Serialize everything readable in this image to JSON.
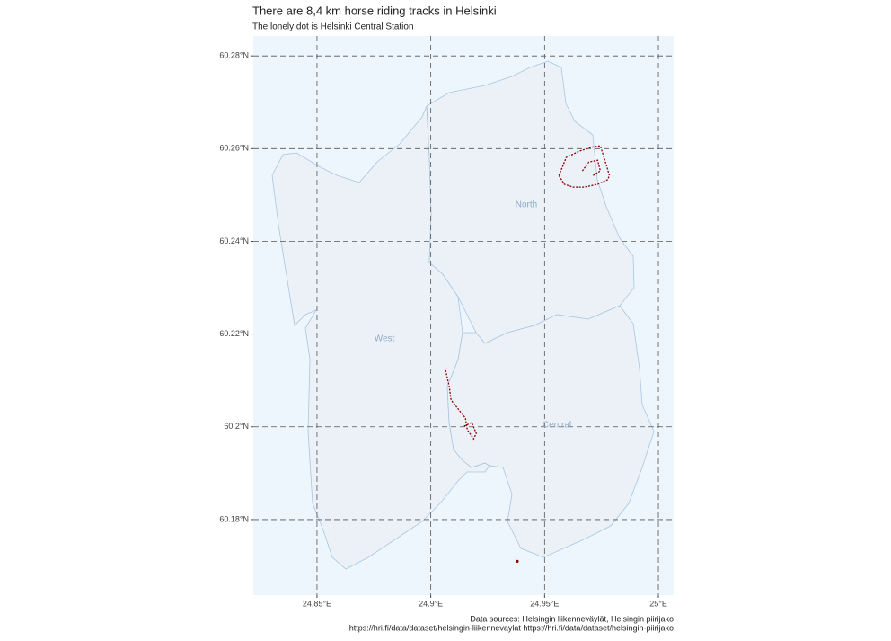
{
  "chart_data": {
    "type": "map",
    "title": "There are 8,4 km horse riding tracks in Helsinki",
    "subtitle": "The lonely dot is Helsinki Central Station",
    "caption": [
      "Data sources: Helsingin liikenneväylät, Helsingin piirijako",
      "https://hri.fi/data/dataset/helsingin-liikennevaylat https://hri.fi/data/dataset/helsingin-piirijako"
    ],
    "xlim": [
      24.822,
      25.0067
    ],
    "ylim": [
      60.1637,
      60.2843
    ],
    "xticks": [
      {
        "value": 24.85,
        "label": "24.85°E"
      },
      {
        "value": 24.9,
        "label": "24.9°E"
      },
      {
        "value": 24.95,
        "label": "24.95°E"
      },
      {
        "value": 25,
        "label": "25°E"
      }
    ],
    "yticks": [
      {
        "value": 60.18,
        "label": "60.18°N"
      },
      {
        "value": 60.2,
        "label": "60.2°N"
      },
      {
        "value": 60.22,
        "label": "60.22°N"
      },
      {
        "value": 60.24,
        "label": "60.24°N"
      },
      {
        "value": 60.26,
        "label": "60.26°N"
      },
      {
        "value": 60.28,
        "label": "60.28°N"
      }
    ],
    "grid": true,
    "regions": [
      "North",
      "West",
      "Central"
    ],
    "color": "#8b0000",
    "tracks": [
      {
        "x": [
          24.9563,
          24.9595,
          24.9654,
          24.9713,
          24.9745,
          24.9761,
          24.9785,
          24.9777,
          24.9733,
          24.9674,
          24.9626,
          24.9587,
          24.9563
        ],
        "y": [
          60.2542,
          60.2581,
          60.2595,
          60.2604,
          60.2606,
          60.2581,
          60.2542,
          60.2533,
          60.2523,
          60.2517,
          60.2517,
          60.2523,
          60.2542
        ]
      },
      {
        "x": [
          24.9666,
          24.9694,
          24.9733,
          24.9745,
          24.9713
        ],
        "y": [
          60.2552,
          60.2571,
          60.2575,
          60.2552,
          60.2542
        ]
      },
      {
        "x": [
          24.9065,
          24.9081,
          24.9089,
          24.9121,
          24.9152,
          24.916,
          24.9188,
          24.92,
          24.918,
          24.914
        ],
        "y": [
          60.2122,
          60.2087,
          60.2058,
          60.2038,
          60.2019,
          60.1994,
          60.1974,
          60.1986,
          60.2009,
          60.2
        ]
      }
    ],
    "station": {
      "x": 24.938,
      "y": 60.171
    }
  }
}
